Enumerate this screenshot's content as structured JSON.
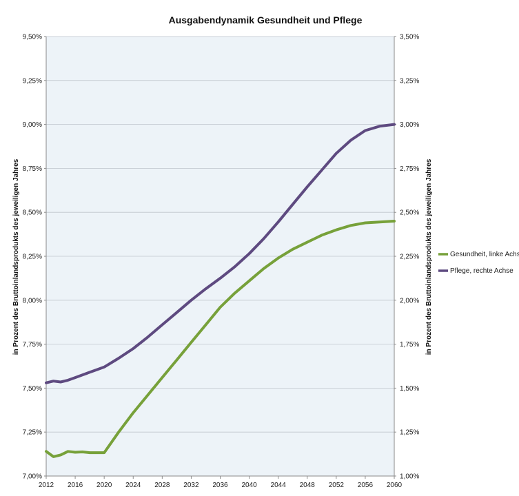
{
  "chart_data": {
    "type": "line",
    "title": "Ausgabendynamik Gesundheit und Pflege",
    "ylabel_left": "in Prozent des Bruttoinlandsprodukts des jeweiligen Jahres",
    "ylabel_right": "in Prozent des Bruttoinlandsprodukts des jeweiligen Jahres",
    "xlim": [
      2012,
      2060
    ],
    "ylim_left": [
      7.0,
      9.5
    ],
    "ylim_right": [
      1.0,
      3.5
    ],
    "x_ticks": [
      "2012",
      "2016",
      "2020",
      "2024",
      "2028",
      "2032",
      "2036",
      "2040",
      "2044",
      "2048",
      "2052",
      "2056",
      "2060"
    ],
    "y_ticks_left": [
      "7,00%",
      "7,25%",
      "7,50%",
      "7,75%",
      "8,00%",
      "8,25%",
      "8,50%",
      "8,75%",
      "9,00%",
      "9,25%",
      "9,50%"
    ],
    "y_ticks_right": [
      "1,00%",
      "1,25%",
      "1,50%",
      "1,75%",
      "2,00%",
      "2,25%",
      "2,50%",
      "2,75%",
      "3,00%",
      "3,25%",
      "3,50%"
    ],
    "grid": true,
    "legend_position": "right",
    "colors": {
      "plot_bg": "#EDF3F8",
      "gridline": "#BFC5CC"
    },
    "series": [
      {
        "name": "Gesundheit, linke Achse",
        "axis": "left",
        "color": "#77A13A",
        "x": [
          2012,
          2013,
          2014,
          2015,
          2016,
          2017,
          2018,
          2019,
          2020,
          2022,
          2024,
          2026,
          2028,
          2030,
          2032,
          2034,
          2036,
          2038,
          2040,
          2042,
          2044,
          2046,
          2048,
          2049,
          2050,
          2052,
          2054,
          2056,
          2058,
          2060
        ],
        "y": [
          7.14,
          7.11,
          7.12,
          7.14,
          7.135,
          7.137,
          7.133,
          7.133,
          7.133,
          7.25,
          7.36,
          7.46,
          7.56,
          7.66,
          7.76,
          7.86,
          7.96,
          8.04,
          8.11,
          8.18,
          8.24,
          8.29,
          8.33,
          8.35,
          8.37,
          8.4,
          8.425,
          8.44,
          8.445,
          8.45
        ]
      },
      {
        "name": "Pflege, rechte Achse",
        "axis": "right",
        "color": "#5E4A80",
        "x": [
          2012,
          2013,
          2014,
          2015,
          2016,
          2017,
          2018,
          2019,
          2020,
          2022,
          2024,
          2026,
          2028,
          2030,
          2032,
          2034,
          2036,
          2038,
          2040,
          2042,
          2044,
          2046,
          2048,
          2050,
          2052,
          2054,
          2056,
          2058,
          2060
        ],
        "y": [
          1.53,
          1.54,
          1.535,
          1.545,
          1.56,
          1.575,
          1.59,
          1.605,
          1.62,
          1.67,
          1.725,
          1.79,
          1.86,
          1.93,
          2.0,
          2.065,
          2.125,
          2.19,
          2.265,
          2.35,
          2.445,
          2.545,
          2.645,
          2.74,
          2.835,
          2.91,
          2.965,
          2.99,
          3.0
        ]
      }
    ]
  }
}
